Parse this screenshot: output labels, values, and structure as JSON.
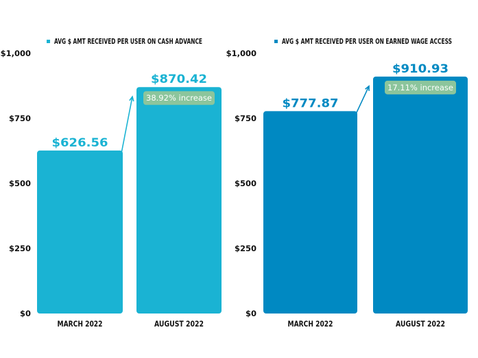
{
  "chart_data": [
    {
      "type": "bar",
      "legend": "AVG $ AMT RECEIVED PER USER ON CASH ADVANCE",
      "categories": [
        "MARCH 2022",
        "AUGUST 2022"
      ],
      "values": [
        626.56,
        870.42
      ],
      "value_labels": [
        "$626.56",
        "$870.42"
      ],
      "ylim": [
        0,
        1000
      ],
      "yticks": [
        0,
        250,
        500,
        750,
        1000
      ],
      "ytick_labels": [
        "$0",
        "$250",
        "$500",
        "$750",
        "$1,000"
      ],
      "annotation": "38.92% increase",
      "bar_color": "#1ab3d3",
      "label_color": "#1ab3d3",
      "legend_color": "#1ab3d3",
      "legend_position": "top"
    },
    {
      "type": "bar",
      "legend": "AVG $ AMT RECEIVED PER USER ON EARNED WAGE ACCESS",
      "categories": [
        "MARCH 2022",
        "AUGUST 2022"
      ],
      "values": [
        777.87,
        910.93
      ],
      "value_labels": [
        "$777.87",
        "$910.93"
      ],
      "ylim": [
        0,
        1000
      ],
      "yticks": [
        0,
        250,
        500,
        750,
        1000
      ],
      "ytick_labels": [
        "$0",
        "$250",
        "$500",
        "$750",
        "$1,000"
      ],
      "annotation": "17.11% increase",
      "bar_color": "#0089c2",
      "label_color": "#0089c2",
      "legend_color": "#0089c2",
      "legend_position": "top"
    }
  ],
  "colors": {
    "badge_bg": "#8cc59c",
    "badge_text": "#ffffff",
    "axis_text": "#111111"
  }
}
